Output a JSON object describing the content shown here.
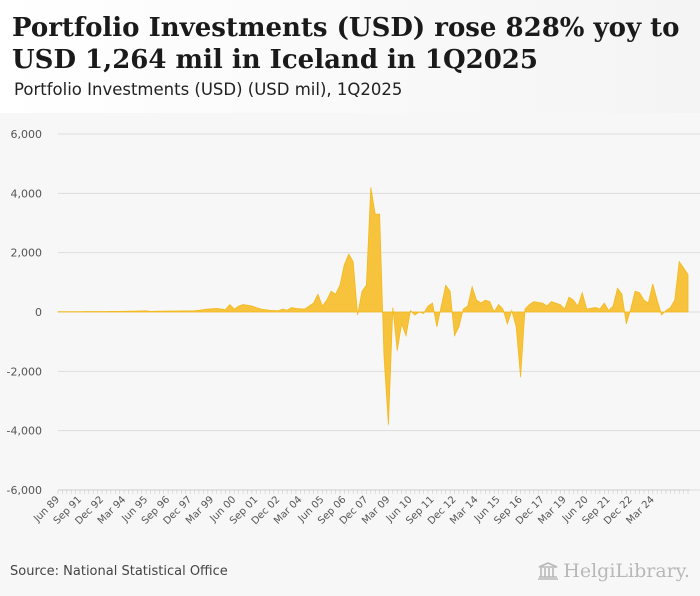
{
  "header": {
    "title": "Portfolio Investments (USD) rose 828% yoy to USD 1,264 mil in Iceland in 1Q2025",
    "subtitle": "Portfolio Investments (USD) (USD mil), 1Q2025"
  },
  "footer": {
    "source": "Source: National Statistical Office",
    "logo_text": "HelgiLibrary."
  },
  "colors": {
    "fill": "#f7c33d",
    "stroke": "#f3b91e",
    "grid": "#dddddd",
    "axis_text": "#555555",
    "background": "#f7f7f7"
  },
  "chart_data": {
    "type": "area",
    "title": "Portfolio Investments (USD) (USD mil), 1Q2025",
    "xlabel": "",
    "ylabel": "",
    "ylim": [
      -6000,
      6000
    ],
    "yticks": [
      6000,
      4000,
      2000,
      0,
      -2000,
      -4000,
      -6000
    ],
    "ytick_labels": [
      "6,000",
      "4,000",
      "2,000",
      "0",
      "-2,000",
      "-4,000",
      "-6,000"
    ],
    "xtick_labels": [
      "Jun 89",
      "Sep 91",
      "Dec 92",
      "Mar 94",
      "Jun 95",
      "Sep 96",
      "Dec 97",
      "Mar 99",
      "Jun 00",
      "Sep 01",
      "Dec 02",
      "Mar 04",
      "Jun 05",
      "Sep 06",
      "Dec 07",
      "Mar 09",
      "Jun 10",
      "Sep 11",
      "Dec 12",
      "Mar 14",
      "Jun 15",
      "Sep 16",
      "Dec 17",
      "Mar 19",
      "Jun 20",
      "Sep 21",
      "Dec 22",
      "Mar 24"
    ],
    "series": [
      {
        "name": "Portfolio Investments (USD)",
        "start": "2Q1989",
        "end": "1Q2025",
        "frequency": "quarterly",
        "keypoints": [
          [
            "2Q1989",
            10
          ],
          [
            "4Q1992",
            20
          ],
          [
            "2Q1994",
            40
          ],
          [
            "3Q1994",
            20
          ],
          [
            "2Q1995",
            30
          ],
          [
            "1Q1997",
            40
          ],
          [
            "4Q1997",
            100
          ],
          [
            "2Q1998",
            120
          ],
          [
            "4Q1998",
            80
          ],
          [
            "1Q1999",
            250
          ],
          [
            "2Q1999",
            100
          ],
          [
            "3Q1999",
            200
          ],
          [
            "4Q1999",
            250
          ],
          [
            "2Q2000",
            200
          ],
          [
            "4Q2000",
            100
          ],
          [
            "2Q2001",
            60
          ],
          [
            "4Q2001",
            40
          ],
          [
            "1Q2002",
            100
          ],
          [
            "2Q2002",
            60
          ],
          [
            "3Q2002",
            150
          ],
          [
            "4Q2002",
            120
          ],
          [
            "2Q2003",
            100
          ],
          [
            "3Q2003",
            200
          ],
          [
            "4Q2003",
            300
          ],
          [
            "1Q2004",
            600
          ],
          [
            "2Q2004",
            200
          ],
          [
            "3Q2004",
            400
          ],
          [
            "4Q2004",
            700
          ],
          [
            "1Q2005",
            600
          ],
          [
            "2Q2005",
            900
          ],
          [
            "3Q2005",
            1600
          ],
          [
            "4Q2005",
            1950
          ],
          [
            "1Q2006",
            1700
          ],
          [
            "2Q2006",
            -100
          ],
          [
            "3Q2006",
            700
          ],
          [
            "4Q2006",
            900
          ],
          [
            "1Q2007",
            4200
          ],
          [
            "2Q2007",
            3300
          ],
          [
            "3Q2007",
            3300
          ],
          [
            "4Q2007",
            -1500
          ],
          [
            "1Q2008",
            -3800
          ],
          [
            "2Q2008",
            150
          ],
          [
            "3Q2008",
            -1300
          ],
          [
            "4Q2008",
            -400
          ],
          [
            "1Q2009",
            -800
          ],
          [
            "2Q2009",
            50
          ],
          [
            "3Q2009",
            -100
          ],
          [
            "4Q2009",
            0
          ],
          [
            "1Q2010",
            -50
          ],
          [
            "2Q2010",
            200
          ],
          [
            "3Q2010",
            300
          ],
          [
            "4Q2010",
            -500
          ],
          [
            "1Q2011",
            200
          ],
          [
            "2Q2011",
            900
          ],
          [
            "3Q2011",
            700
          ],
          [
            "4Q2011",
            -800
          ],
          [
            "1Q2012",
            -500
          ],
          [
            "2Q2012",
            100
          ],
          [
            "3Q2012",
            200
          ],
          [
            "4Q2012",
            850
          ],
          [
            "1Q2013",
            400
          ],
          [
            "2Q2013",
            300
          ],
          [
            "3Q2013",
            400
          ],
          [
            "4Q2013",
            350
          ],
          [
            "1Q2014",
            0
          ],
          [
            "2Q2014",
            250
          ],
          [
            "3Q2014",
            100
          ],
          [
            "4Q2014",
            -400
          ],
          [
            "1Q2015",
            50
          ],
          [
            "2Q2015",
            -500
          ],
          [
            "3Q2015",
            -2200
          ],
          [
            "4Q2015",
            100
          ],
          [
            "1Q2016",
            250
          ],
          [
            "2Q2016",
            350
          ],
          [
            "4Q2016",
            300
          ],
          [
            "1Q2017",
            200
          ],
          [
            "2Q2017",
            350
          ],
          [
            "4Q2017",
            250
          ],
          [
            "1Q2018",
            100
          ],
          [
            "2Q2018",
            500
          ],
          [
            "3Q2018",
            400
          ],
          [
            "4Q2018",
            200
          ],
          [
            "1Q2019",
            650
          ],
          [
            "2Q2019",
            100
          ],
          [
            "4Q2019",
            150
          ],
          [
            "1Q2020",
            100
          ],
          [
            "2Q2020",
            300
          ],
          [
            "3Q2020",
            50
          ],
          [
            "4Q2020",
            200
          ],
          [
            "1Q2021",
            800
          ],
          [
            "2Q2021",
            600
          ],
          [
            "3Q2021",
            -400
          ],
          [
            "4Q2021",
            100
          ],
          [
            "1Q2022",
            700
          ],
          [
            "2Q2022",
            650
          ],
          [
            "3Q2022",
            400
          ],
          [
            "4Q2022",
            300
          ],
          [
            "1Q2023",
            950
          ],
          [
            "2Q2023",
            400
          ],
          [
            "3Q2023",
            -100
          ],
          [
            "4Q2023",
            50
          ],
          [
            "1Q2024",
            150
          ],
          [
            "2Q2024",
            400
          ],
          [
            "3Q2024",
            1700
          ],
          [
            "1Q2025",
            1264
          ]
        ]
      }
    ]
  }
}
